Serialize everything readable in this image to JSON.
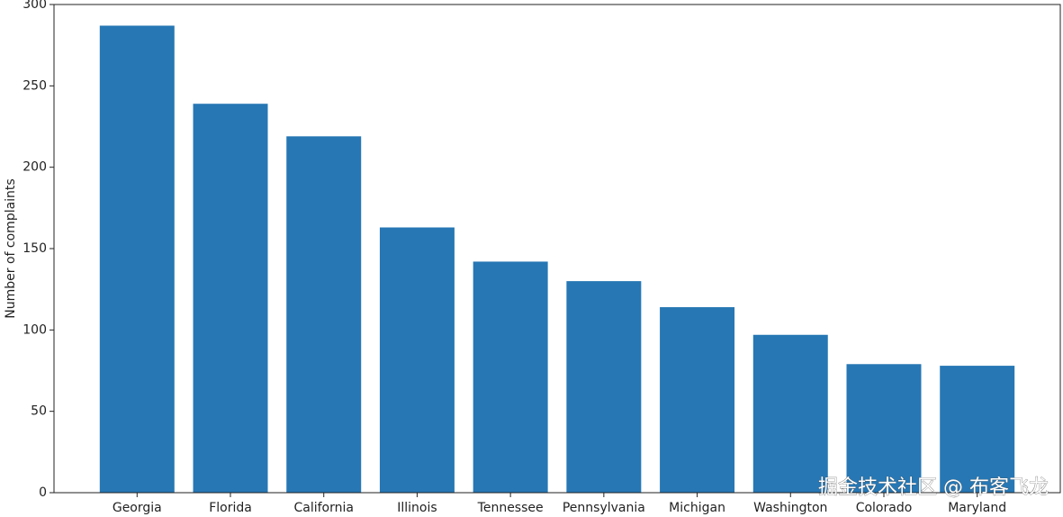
{
  "chart_data": {
    "type": "bar",
    "y_label": "Number of complaints",
    "categories": [
      "Georgia",
      "Florida",
      "California",
      "Illinois",
      "Tennessee",
      "Pennsylvania",
      "Michigan",
      "Washington",
      "Colorado",
      "Maryland"
    ],
    "values": [
      287,
      239,
      219,
      163,
      142,
      130,
      114,
      97,
      79,
      78
    ],
    "color": "#2677b4",
    "ylim": [
      0,
      300
    ],
    "yticks": [
      0,
      50,
      100,
      150,
      200,
      250,
      300
    ],
    "grid": false
  },
  "watermark": "掘金技术社区 @ 布客飞龙"
}
